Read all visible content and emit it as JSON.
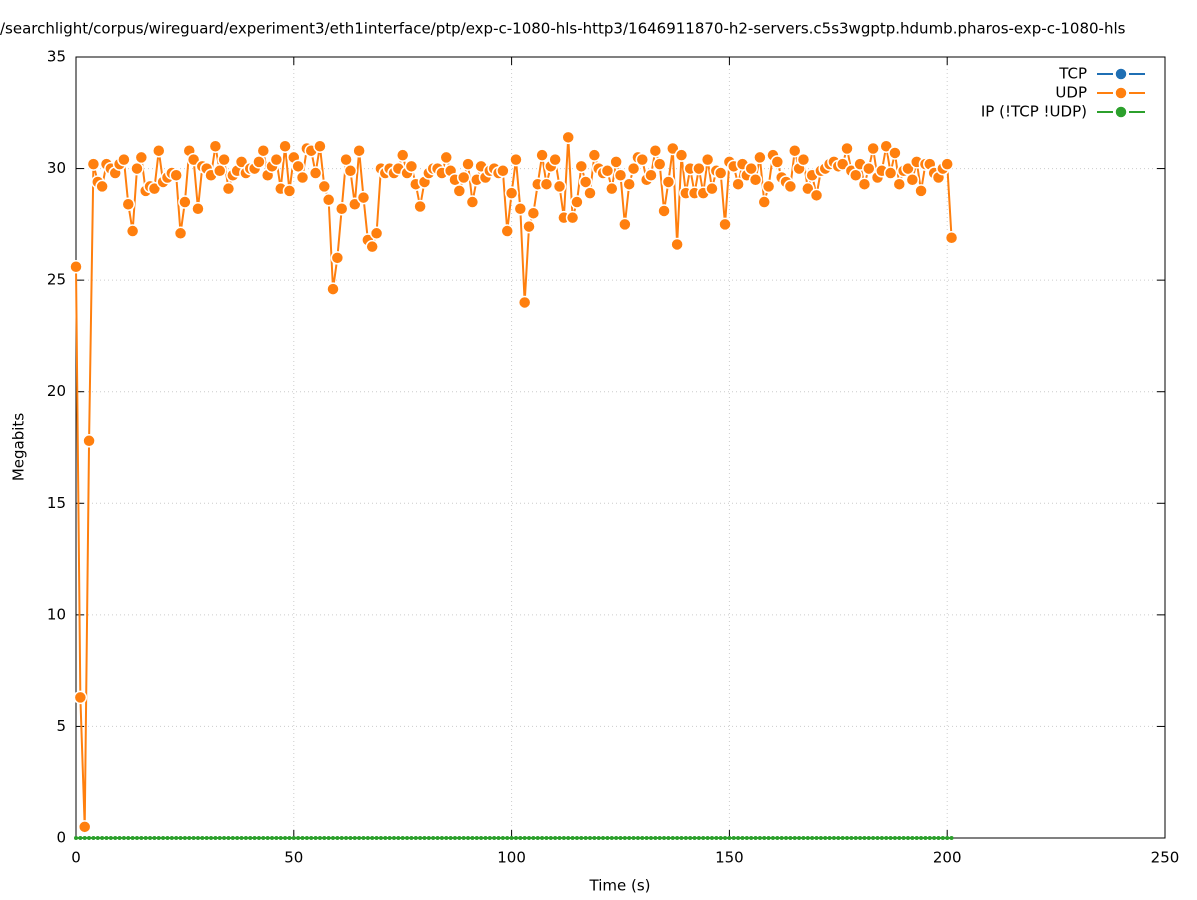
{
  "chart_data": {
    "type": "line",
    "title": "/searchlight/corpus/wireguard/experiment3/eth1interface/ptp/exp-c-1080-hls-http3/1646911870-h2-servers.c5s3wgptp.hdumb.pharos-exp-c-1080-hls",
    "xlabel": "Time (s)",
    "ylabel": "Megabits",
    "xlim": [
      0,
      250
    ],
    "xticks": [
      0,
      50,
      100,
      150,
      200,
      250
    ],
    "ylim": [
      0,
      35
    ],
    "yticks": [
      0,
      5,
      10,
      15,
      20,
      25,
      30,
      35
    ],
    "grid": true,
    "legend": "top-right",
    "x": [
      0,
      1,
      2,
      3,
      4,
      5,
      6,
      7,
      8,
      9,
      10,
      11,
      12,
      13,
      14,
      15,
      16,
      17,
      18,
      19,
      20,
      21,
      22,
      23,
      24,
      25,
      26,
      27,
      28,
      29,
      30,
      31,
      32,
      33,
      34,
      35,
      36,
      37,
      38,
      39,
      40,
      41,
      42,
      43,
      44,
      45,
      46,
      47,
      48,
      49,
      50,
      51,
      52,
      53,
      54,
      55,
      56,
      57,
      58,
      59,
      60,
      61,
      62,
      63,
      64,
      65,
      66,
      67,
      68,
      69,
      70,
      71,
      72,
      73,
      74,
      75,
      76,
      77,
      78,
      79,
      80,
      81,
      82,
      83,
      84,
      85,
      86,
      87,
      88,
      89,
      90,
      91,
      92,
      93,
      94,
      95,
      96,
      97,
      98,
      99,
      100,
      101,
      102,
      103,
      104,
      105,
      106,
      107,
      108,
      109,
      110,
      111,
      112,
      113,
      114,
      115,
      116,
      117,
      118,
      119,
      120,
      121,
      122,
      123,
      124,
      125,
      126,
      127,
      128,
      129,
      130,
      131,
      132,
      133,
      134,
      135,
      136,
      137,
      138,
      139,
      140,
      141,
      142,
      143,
      144,
      145,
      146,
      147,
      148,
      149,
      150,
      151,
      152,
      153,
      154,
      155,
      156,
      157,
      158,
      159,
      160,
      161,
      162,
      163,
      164,
      165,
      166,
      167,
      168,
      169,
      170,
      171,
      172,
      173,
      174,
      175,
      176,
      177,
      178,
      179,
      180,
      181,
      182,
      183,
      184,
      185,
      186,
      187,
      188,
      189,
      190,
      191,
      192,
      193,
      194,
      195,
      196,
      197,
      198,
      199,
      200,
      201
    ],
    "series": [
      {
        "name": "TCP",
        "color": "#1f6fb4",
        "x": [],
        "values": []
      },
      {
        "name": "UDP",
        "color": "#ff7f0e",
        "values": [
          25.6,
          6.3,
          0.5,
          17.8,
          30.2,
          29.4,
          29.2,
          30.2,
          30.0,
          29.8,
          30.2,
          30.4,
          28.4,
          27.2,
          30.0,
          30.5,
          29.0,
          29.2,
          29.1,
          30.8,
          29.4,
          29.6,
          29.8,
          29.7,
          27.1,
          28.5,
          30.8,
          30.4,
          28.2,
          30.1,
          30.0,
          29.7,
          31.0,
          29.9,
          30.4,
          29.1,
          29.7,
          29.9,
          30.3,
          29.8,
          30.0,
          30.0,
          30.3,
          30.8,
          29.7,
          30.1,
          30.4,
          29.1,
          31.0,
          29.0,
          30.5,
          30.1,
          29.6,
          30.9,
          30.8,
          29.8,
          31.0,
          29.2,
          28.6,
          24.6,
          26.0,
          28.2,
          30.4,
          29.9,
          28.4,
          30.8,
          28.7,
          26.8,
          26.5,
          27.1,
          30.0,
          29.8,
          30.0,
          29.8,
          30.0,
          30.6,
          29.8,
          30.1,
          29.3,
          28.3,
          29.4,
          29.8,
          30.0,
          30.0,
          29.8,
          30.5,
          29.9,
          29.5,
          29.0,
          29.6,
          30.2,
          28.5,
          29.5,
          30.1,
          29.6,
          29.9,
          30.0,
          29.8,
          29.9,
          27.2,
          28.9,
          30.4,
          28.2,
          24.0,
          27.4,
          28.0,
          29.3,
          30.6,
          29.3,
          30.1,
          30.4,
          29.2,
          27.8,
          31.4,
          27.8,
          28.5,
          30.1,
          29.4,
          28.9,
          30.6,
          30.0,
          29.8,
          29.9,
          29.1,
          30.3,
          29.7,
          27.5,
          29.3,
          30.0,
          30.5,
          30.4,
          29.5,
          29.7,
          30.8,
          30.2,
          28.1,
          29.4,
          30.9,
          26.6,
          30.6,
          28.9,
          30.0,
          28.9,
          30.0,
          28.9,
          30.4,
          29.1,
          29.9,
          29.8,
          27.5,
          30.3,
          30.1,
          29.3,
          30.2,
          29.7,
          30.0,
          29.5,
          30.5,
          28.5,
          29.2,
          30.6,
          30.3,
          29.6,
          29.4,
          29.2,
          30.8,
          30.0,
          30.4,
          29.1,
          29.7,
          28.8,
          29.9,
          30.0,
          30.2,
          30.3,
          30.1,
          30.2,
          30.9,
          29.9,
          29.7,
          30.2,
          29.3,
          30.0,
          30.9,
          29.6,
          29.9,
          31.0,
          29.8,
          30.7,
          29.3,
          29.9,
          30.0,
          29.5,
          30.3,
          29.0,
          30.2,
          30.2,
          29.8,
          29.6,
          30.0,
          30.2,
          26.9
        ]
      },
      {
        "name": "IP (!TCP  !UDP)",
        "color": "#2ca02c",
        "values": [
          0,
          0,
          0,
          0,
          0,
          0,
          0,
          0,
          0,
          0,
          0,
          0,
          0,
          0,
          0,
          0,
          0,
          0,
          0,
          0,
          0,
          0,
          0,
          0,
          0,
          0,
          0,
          0,
          0,
          0,
          0,
          0,
          0,
          0,
          0,
          0,
          0,
          0,
          0,
          0,
          0,
          0,
          0,
          0,
          0,
          0,
          0,
          0,
          0,
          0,
          0,
          0,
          0,
          0,
          0,
          0,
          0,
          0,
          0,
          0,
          0,
          0,
          0,
          0,
          0,
          0,
          0,
          0,
          0,
          0,
          0,
          0,
          0,
          0,
          0,
          0,
          0,
          0,
          0,
          0,
          0,
          0,
          0,
          0,
          0,
          0,
          0,
          0,
          0,
          0,
          0,
          0,
          0,
          0,
          0,
          0,
          0,
          0,
          0,
          0,
          0,
          0,
          0,
          0,
          0,
          0,
          0,
          0,
          0,
          0,
          0,
          0,
          0,
          0,
          0,
          0,
          0,
          0,
          0,
          0,
          0,
          0,
          0,
          0,
          0,
          0,
          0,
          0,
          0,
          0,
          0,
          0,
          0,
          0,
          0,
          0,
          0,
          0,
          0,
          0,
          0,
          0,
          0,
          0,
          0,
          0,
          0,
          0,
          0,
          0,
          0,
          0,
          0,
          0,
          0,
          0,
          0,
          0,
          0,
          0,
          0,
          0,
          0,
          0,
          0,
          0,
          0,
          0,
          0,
          0,
          0,
          0,
          0,
          0,
          0,
          0,
          0,
          0,
          0,
          0,
          0,
          0,
          0,
          0,
          0,
          0,
          0,
          0,
          0,
          0,
          0,
          0,
          0,
          0,
          0,
          0,
          0,
          0,
          0,
          0,
          0,
          0
        ]
      }
    ]
  }
}
